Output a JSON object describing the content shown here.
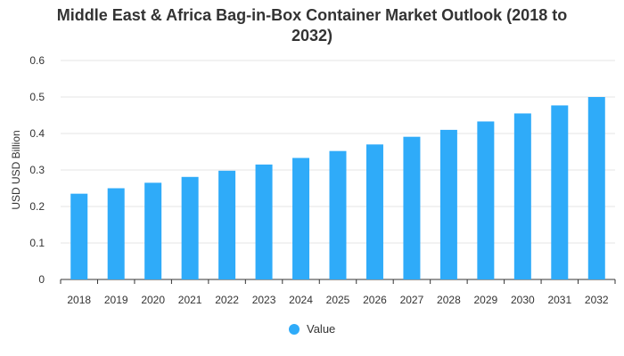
{
  "chart_data": {
    "type": "bar",
    "title": "Middle East & Africa Bag-in-Box Container Market Outlook (2018 to 2032)",
    "title_lines": [
      "Middle East & Africa Bag-in-Box Container Market Outlook (2018 to",
      "2032)"
    ],
    "xlabel": "",
    "ylabel": "USD USD Billion",
    "categories": [
      "2018",
      "2019",
      "2020",
      "2021",
      "2022",
      "2023",
      "2024",
      "2025",
      "2026",
      "2027",
      "2028",
      "2029",
      "2030",
      "2031",
      "2032"
    ],
    "series": [
      {
        "name": "Value",
        "values": [
          0.235,
          0.25,
          0.265,
          0.281,
          0.298,
          0.315,
          0.333,
          0.352,
          0.37,
          0.391,
          0.41,
          0.433,
          0.455,
          0.477,
          0.5
        ]
      }
    ],
    "ylim": [
      0,
      0.6
    ],
    "yticks": [
      "0",
      "0.1",
      "0.2",
      "0.3",
      "0.4",
      "0.5",
      "0.6"
    ],
    "grid": true,
    "legend_position": "bottom-center",
    "colors": {
      "bar": "#2fabf9",
      "grid": "#e6e6e6",
      "axis": "#333333",
      "text": "#333333"
    }
  }
}
